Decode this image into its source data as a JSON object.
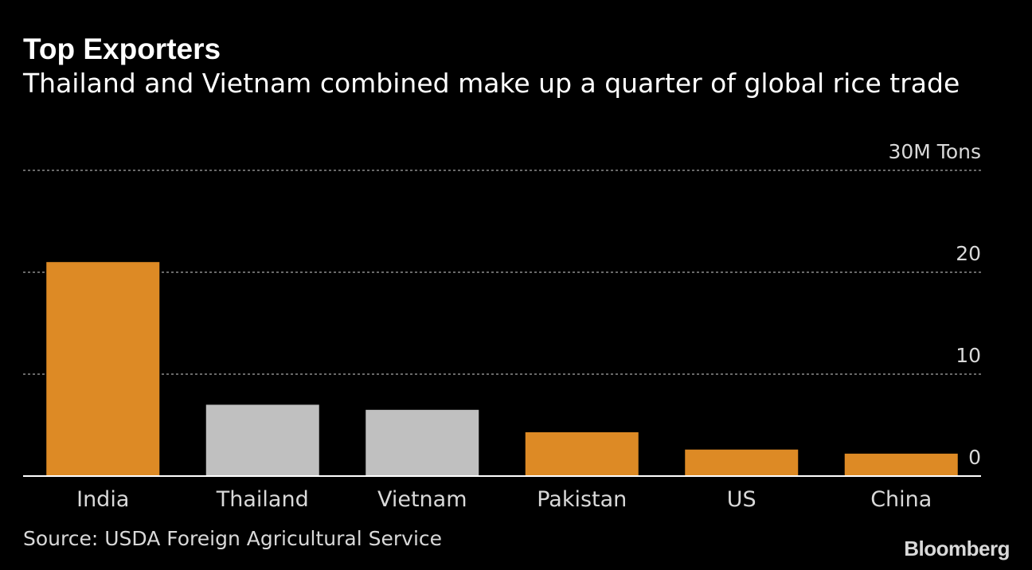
{
  "header": {
    "title": "Top Exporters",
    "subtitle": "Thailand and Vietnam combined make up a quarter of global rice trade"
  },
  "footer": {
    "source": "Source: USDA Foreign Agricultural Service",
    "brand": "Bloomberg"
  },
  "colors": {
    "background": "#000000",
    "highlight": "#dd8a25",
    "muted": "#c0c0c0",
    "text": "#ffffff",
    "secondary_text": "#d9d9d9",
    "gridline": "#8c8c8c",
    "baseline": "#ffffff"
  },
  "chart_data": {
    "type": "bar",
    "title": "Top Exporters",
    "subtitle": "Thailand and Vietnam combined make up a quarter of global rice trade",
    "xlabel": "",
    "ylabel": "",
    "categories": [
      "India",
      "Thailand",
      "Vietnam",
      "Pakistan",
      "US",
      "China"
    ],
    "values": [
      21.0,
      7.0,
      6.5,
      4.3,
      2.6,
      2.2
    ],
    "highlight": [
      true,
      false,
      false,
      true,
      true,
      true
    ],
    "ylim": [
      0,
      30
    ],
    "yticks": [
      0,
      10,
      20,
      30
    ],
    "ytick_labels": [
      "0",
      "10",
      "20",
      "30M Tons"
    ],
    "grid": true,
    "axis_position": "right"
  }
}
